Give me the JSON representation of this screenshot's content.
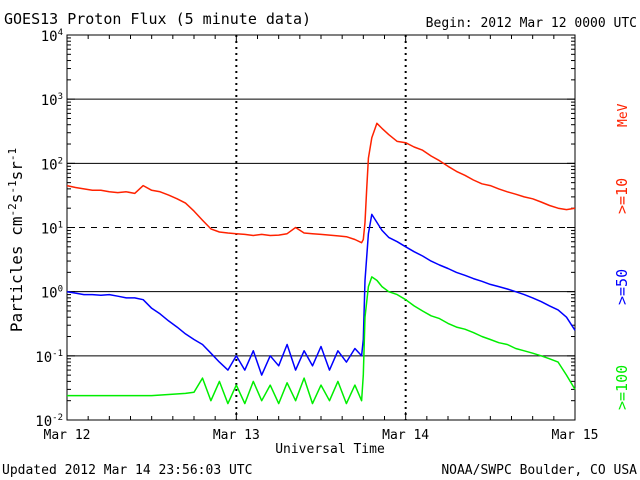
{
  "title": "GOES13 Proton Flux (5 minute data)",
  "begin_text": "Begin: 2012 Mar 12 0000 UTC",
  "updated_text": "Updated 2012 Mar 14 23:56:03 UTC",
  "credit_text": "NOAA/SWPC Boulder, CO USA",
  "colors": {
    "ge10": "#ff2200",
    "ge50": "#0000ff",
    "ge100": "#00ee00",
    "axis": "#000000"
  },
  "chart_data": {
    "type": "line",
    "title": "GOES13 Proton Flux (5 minute data)",
    "xlabel": "Universal Time",
    "ylabel": "Particles cm-2s-1sr-1",
    "yscale": "log",
    "ylim": [
      0.01,
      10000
    ],
    "xlim": [
      0,
      3
    ],
    "x_unit": "days since 2012 Mar 12 0000 UTC",
    "x_ticks": [
      {
        "x": 0,
        "label": "Mar 12"
      },
      {
        "x": 1,
        "label": "Mar 13"
      },
      {
        "x": 2,
        "label": "Mar 14"
      },
      {
        "x": 3,
        "label": "Mar 15"
      }
    ],
    "y_ticks": [
      {
        "value": 0.01,
        "base": "10",
        "exp": "-2"
      },
      {
        "value": 0.1,
        "base": "10",
        "exp": "-1"
      },
      {
        "value": 1,
        "base": "10",
        "exp": "0"
      },
      {
        "value": 10,
        "base": "10",
        "exp": "1"
      },
      {
        "value": 100,
        "base": "10",
        "exp": "2"
      },
      {
        "value": 1000,
        "base": "10",
        "exp": "3"
      },
      {
        "value": 10000,
        "base": "10",
        "exp": "4"
      }
    ],
    "threshold_lines": [
      {
        "value": 10,
        "style": "dashed"
      },
      {
        "value": 100,
        "style": "solid"
      },
      {
        "value": 1000,
        "style": "solid"
      },
      {
        "value": 1,
        "style": "solid"
      },
      {
        "value": 0.1,
        "style": "solid"
      }
    ],
    "unit_label": "MeV",
    "series": [
      {
        "name": ">=10",
        "color": "#ff2200",
        "points": [
          [
            0.0,
            45
          ],
          [
            0.05,
            42
          ],
          [
            0.1,
            40
          ],
          [
            0.15,
            38
          ],
          [
            0.2,
            38
          ],
          [
            0.25,
            36
          ],
          [
            0.3,
            35
          ],
          [
            0.35,
            36
          ],
          [
            0.4,
            34
          ],
          [
            0.45,
            45
          ],
          [
            0.5,
            38
          ],
          [
            0.55,
            36
          ],
          [
            0.6,
            32
          ],
          [
            0.65,
            28
          ],
          [
            0.7,
            24
          ],
          [
            0.75,
            18
          ],
          [
            0.8,
            13
          ],
          [
            0.85,
            9.5
          ],
          [
            0.9,
            8.5
          ],
          [
            0.95,
            8.2
          ],
          [
            1.0,
            8.0
          ],
          [
            1.05,
            7.8
          ],
          [
            1.1,
            7.5
          ],
          [
            1.15,
            7.8
          ],
          [
            1.2,
            7.5
          ],
          [
            1.25,
            7.6
          ],
          [
            1.3,
            8.0
          ],
          [
            1.35,
            10.0
          ],
          [
            1.4,
            8.2
          ],
          [
            1.45,
            8.0
          ],
          [
            1.5,
            7.8
          ],
          [
            1.55,
            7.6
          ],
          [
            1.6,
            7.4
          ],
          [
            1.65,
            7.2
          ],
          [
            1.7,
            6.5
          ],
          [
            1.74,
            5.8
          ],
          [
            1.75,
            6.5
          ],
          [
            1.76,
            12
          ],
          [
            1.77,
            40
          ],
          [
            1.78,
            120
          ],
          [
            1.8,
            250
          ],
          [
            1.83,
            420
          ],
          [
            1.86,
            350
          ],
          [
            1.9,
            280
          ],
          [
            1.95,
            220
          ],
          [
            2.0,
            210
          ],
          [
            2.05,
            180
          ],
          [
            2.1,
            160
          ],
          [
            2.15,
            130
          ],
          [
            2.2,
            110
          ],
          [
            2.25,
            90
          ],
          [
            2.3,
            75
          ],
          [
            2.35,
            65
          ],
          [
            2.4,
            55
          ],
          [
            2.45,
            48
          ],
          [
            2.5,
            45
          ],
          [
            2.55,
            40
          ],
          [
            2.6,
            36
          ],
          [
            2.65,
            33
          ],
          [
            2.7,
            30
          ],
          [
            2.75,
            28
          ],
          [
            2.8,
            25
          ],
          [
            2.85,
            22
          ],
          [
            2.9,
            20
          ],
          [
            2.95,
            19
          ],
          [
            3.0,
            20
          ]
        ]
      },
      {
        "name": ">=50",
        "color": "#0000ff",
        "points": [
          [
            0.0,
            1.0
          ],
          [
            0.05,
            0.95
          ],
          [
            0.1,
            0.9
          ],
          [
            0.15,
            0.9
          ],
          [
            0.2,
            0.88
          ],
          [
            0.25,
            0.9
          ],
          [
            0.3,
            0.85
          ],
          [
            0.35,
            0.8
          ],
          [
            0.4,
            0.8
          ],
          [
            0.45,
            0.75
          ],
          [
            0.5,
            0.55
          ],
          [
            0.55,
            0.45
          ],
          [
            0.6,
            0.35
          ],
          [
            0.65,
            0.28
          ],
          [
            0.7,
            0.22
          ],
          [
            0.75,
            0.18
          ],
          [
            0.8,
            0.15
          ],
          [
            0.85,
            0.11
          ],
          [
            0.9,
            0.08
          ],
          [
            0.95,
            0.06
          ],
          [
            1.0,
            0.1
          ],
          [
            1.05,
            0.06
          ],
          [
            1.1,
            0.12
          ],
          [
            1.15,
            0.05
          ],
          [
            1.2,
            0.1
          ],
          [
            1.25,
            0.07
          ],
          [
            1.3,
            0.15
          ],
          [
            1.35,
            0.06
          ],
          [
            1.4,
            0.12
          ],
          [
            1.45,
            0.07
          ],
          [
            1.5,
            0.14
          ],
          [
            1.55,
            0.06
          ],
          [
            1.6,
            0.12
          ],
          [
            1.65,
            0.08
          ],
          [
            1.7,
            0.13
          ],
          [
            1.74,
            0.1
          ],
          [
            1.75,
            0.18
          ],
          [
            1.76,
            1.5
          ],
          [
            1.78,
            8
          ],
          [
            1.8,
            16
          ],
          [
            1.83,
            12
          ],
          [
            1.86,
            9
          ],
          [
            1.9,
            7.0
          ],
          [
            1.95,
            6.0
          ],
          [
            2.0,
            5.0
          ],
          [
            2.05,
            4.2
          ],
          [
            2.1,
            3.6
          ],
          [
            2.15,
            3.0
          ],
          [
            2.2,
            2.6
          ],
          [
            2.25,
            2.3
          ],
          [
            2.3,
            2.0
          ],
          [
            2.35,
            1.8
          ],
          [
            2.4,
            1.6
          ],
          [
            2.45,
            1.45
          ],
          [
            2.5,
            1.3
          ],
          [
            2.55,
            1.2
          ],
          [
            2.6,
            1.1
          ],
          [
            2.65,
            1.0
          ],
          [
            2.7,
            0.9
          ],
          [
            2.75,
            0.8
          ],
          [
            2.8,
            0.7
          ],
          [
            2.85,
            0.6
          ],
          [
            2.9,
            0.52
          ],
          [
            2.95,
            0.4
          ],
          [
            3.0,
            0.25
          ]
        ]
      },
      {
        "name": ">=100",
        "color": "#00ee00",
        "points": [
          [
            0.0,
            0.024
          ],
          [
            0.1,
            0.024
          ],
          [
            0.2,
            0.024
          ],
          [
            0.3,
            0.024
          ],
          [
            0.4,
            0.024
          ],
          [
            0.5,
            0.024
          ],
          [
            0.6,
            0.025
          ],
          [
            0.7,
            0.026
          ],
          [
            0.75,
            0.027
          ],
          [
            0.8,
            0.045
          ],
          [
            0.85,
            0.02
          ],
          [
            0.9,
            0.04
          ],
          [
            0.95,
            0.018
          ],
          [
            1.0,
            0.035
          ],
          [
            1.05,
            0.018
          ],
          [
            1.1,
            0.04
          ],
          [
            1.15,
            0.02
          ],
          [
            1.2,
            0.035
          ],
          [
            1.25,
            0.018
          ],
          [
            1.3,
            0.038
          ],
          [
            1.35,
            0.02
          ],
          [
            1.4,
            0.045
          ],
          [
            1.45,
            0.018
          ],
          [
            1.5,
            0.035
          ],
          [
            1.55,
            0.02
          ],
          [
            1.6,
            0.04
          ],
          [
            1.65,
            0.018
          ],
          [
            1.7,
            0.035
          ],
          [
            1.74,
            0.02
          ],
          [
            1.75,
            0.05
          ],
          [
            1.76,
            0.4
          ],
          [
            1.78,
            1.2
          ],
          [
            1.8,
            1.7
          ],
          [
            1.83,
            1.5
          ],
          [
            1.86,
            1.2
          ],
          [
            1.9,
            1.0
          ],
          [
            1.95,
            0.9
          ],
          [
            2.0,
            0.75
          ],
          [
            2.05,
            0.6
          ],
          [
            2.1,
            0.5
          ],
          [
            2.15,
            0.42
          ],
          [
            2.2,
            0.38
          ],
          [
            2.25,
            0.32
          ],
          [
            2.3,
            0.28
          ],
          [
            2.35,
            0.26
          ],
          [
            2.4,
            0.23
          ],
          [
            2.45,
            0.2
          ],
          [
            2.5,
            0.18
          ],
          [
            2.55,
            0.16
          ],
          [
            2.6,
            0.15
          ],
          [
            2.65,
            0.13
          ],
          [
            2.7,
            0.12
          ],
          [
            2.75,
            0.11
          ],
          [
            2.8,
            0.1
          ],
          [
            2.85,
            0.09
          ],
          [
            2.9,
            0.08
          ],
          [
            2.95,
            0.05
          ],
          [
            3.0,
            0.03
          ]
        ]
      }
    ]
  }
}
